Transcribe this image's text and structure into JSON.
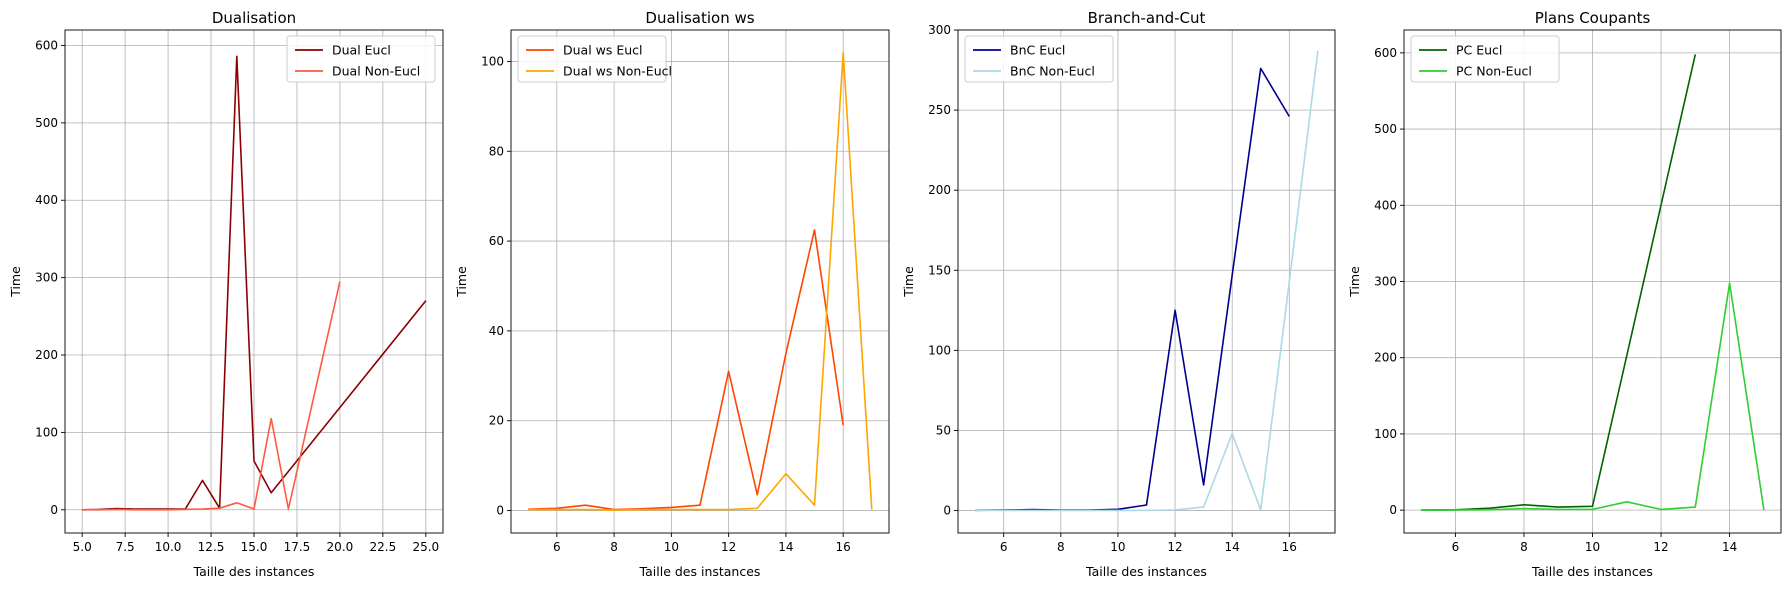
{
  "chart_data": [
    {
      "type": "line",
      "title": "Dualisation",
      "xlabel": "Taille des instances",
      "ylabel": "Time",
      "xlim": [
        4.0,
        26.0
      ],
      "ylim": [
        -30,
        620
      ],
      "xticks": [
        5.0,
        7.5,
        10.0,
        12.5,
        15.0,
        17.5,
        20.0,
        22.5,
        25.0
      ],
      "xtick_labels": [
        "5.0",
        "7.5",
        "10.0",
        "12.5",
        "15.0",
        "17.5",
        "20.0",
        "22.5",
        "25.0"
      ],
      "yticks": [
        0,
        100,
        200,
        300,
        400,
        500,
        600
      ],
      "ytick_labels": [
        "0",
        "100",
        "200",
        "300",
        "400",
        "500",
        "600"
      ],
      "grid": true,
      "legend_position": "top-right",
      "series": [
        {
          "name": "Dual Eucl",
          "color": "#8b0000",
          "x": [
            5,
            6,
            7,
            8,
            9,
            10,
            11,
            12,
            13,
            14,
            15,
            16,
            25
          ],
          "y": [
            0,
            0.5,
            1.5,
            1,
            1,
            1,
            1,
            38,
            2,
            586,
            63,
            22,
            270
          ]
        },
        {
          "name": "Dual Non-Eucl",
          "color": "#ff5a40",
          "x": [
            5,
            6,
            7,
            8,
            9,
            10,
            11,
            12,
            13,
            14,
            15,
            16,
            17,
            20
          ],
          "y": [
            0,
            0,
            0.5,
            0,
            0,
            0,
            0.5,
            1,
            2,
            9,
            1,
            118,
            1,
            295
          ]
        }
      ]
    },
    {
      "type": "line",
      "title": "Dualisation ws",
      "xlabel": "Taille des instances",
      "ylabel": "Time",
      "xlim": [
        4.4,
        17.6
      ],
      "ylim": [
        -5,
        107
      ],
      "xticks": [
        6,
        8,
        10,
        12,
        14,
        16
      ],
      "xtick_labels": [
        "6",
        "8",
        "10",
        "12",
        "14",
        "16"
      ],
      "yticks": [
        0,
        20,
        40,
        60,
        80,
        100
      ],
      "ytick_labels": [
        "0",
        "20",
        "40",
        "60",
        "80",
        "100"
      ],
      "grid": true,
      "legend_position": "top-left",
      "series": [
        {
          "name": "Dual ws Eucl",
          "color": "#ff4500",
          "x": [
            5,
            6,
            7,
            8,
            9,
            10,
            11,
            12,
            13,
            14,
            15,
            16
          ],
          "y": [
            0.3,
            0.5,
            1.2,
            0.2,
            0.4,
            0.7,
            1.2,
            31,
            3.5,
            35,
            62.5,
            19
          ]
        },
        {
          "name": "Dual ws Non-Eucl",
          "color": "#ffa500",
          "x": [
            5,
            6,
            7,
            8,
            9,
            10,
            11,
            12,
            13,
            14,
            15,
            16,
            17
          ],
          "y": [
            0.2,
            0.2,
            0.2,
            0.1,
            0.2,
            0.2,
            0.2,
            0.2,
            0.5,
            8.2,
            1.2,
            102,
            0.2
          ]
        }
      ]
    },
    {
      "type": "line",
      "title": "Branch-and-Cut",
      "xlabel": "Taille des instances",
      "ylabel": "Time",
      "xlim": [
        4.4,
        17.6
      ],
      "ylim": [
        -14,
        300
      ],
      "xticks": [
        6,
        8,
        10,
        12,
        14,
        16
      ],
      "xtick_labels": [
        "6",
        "8",
        "10",
        "12",
        "14",
        "16"
      ],
      "yticks": [
        0,
        50,
        100,
        150,
        200,
        250,
        300
      ],
      "ytick_labels": [
        "0",
        "50",
        "100",
        "150",
        "200",
        "250",
        "300"
      ],
      "grid": true,
      "legend_position": "top-left",
      "series": [
        {
          "name": "BnC Eucl",
          "color": "#00008b",
          "x": [
            5,
            6,
            7,
            8,
            9,
            10,
            11,
            12,
            13,
            14,
            15,
            16
          ],
          "y": [
            0.2,
            0.3,
            0.6,
            0.3,
            0.3,
            0.8,
            3.5,
            125,
            16,
            147,
            276,
            246
          ]
        },
        {
          "name": "BnC Non-Eucl",
          "color": "#add8e6",
          "x": [
            5,
            6,
            7,
            8,
            9,
            10,
            11,
            12,
            13,
            14,
            15,
            16,
            17
          ],
          "y": [
            0.1,
            0.1,
            0.1,
            0.1,
            0.1,
            0.1,
            0.1,
            0.4,
            2.2,
            48,
            0.5,
            143,
            287
          ]
        }
      ]
    },
    {
      "type": "line",
      "title": "Plans Coupants",
      "xlabel": "Taille des instances",
      "ylabel": "Time",
      "xlim": [
        4.5,
        15.5
      ],
      "ylim": [
        -30,
        630
      ],
      "xticks": [
        6,
        8,
        10,
        12,
        14
      ],
      "xtick_labels": [
        "6",
        "8",
        "10",
        "12",
        "14"
      ],
      "yticks": [
        0,
        100,
        200,
        300,
        400,
        500,
        600
      ],
      "ytick_labels": [
        "0",
        "100",
        "200",
        "300",
        "400",
        "500",
        "600"
      ],
      "grid": true,
      "legend_position": "top-left",
      "series": [
        {
          "name": "PC Eucl",
          "color": "#006400",
          "x": [
            5,
            6,
            7,
            8,
            9,
            10,
            13
          ],
          "y": [
            0,
            0.5,
            2.5,
            7,
            4,
            5,
            598
          ]
        },
        {
          "name": "PC Non-Eucl",
          "color": "#32cd32",
          "x": [
            5,
            6,
            7,
            8,
            9,
            10,
            11,
            12,
            13,
            14,
            15
          ],
          "y": [
            0,
            0,
            0.5,
            2,
            1,
            1,
            11,
            1,
            4,
            298,
            0
          ]
        }
      ]
    }
  ]
}
